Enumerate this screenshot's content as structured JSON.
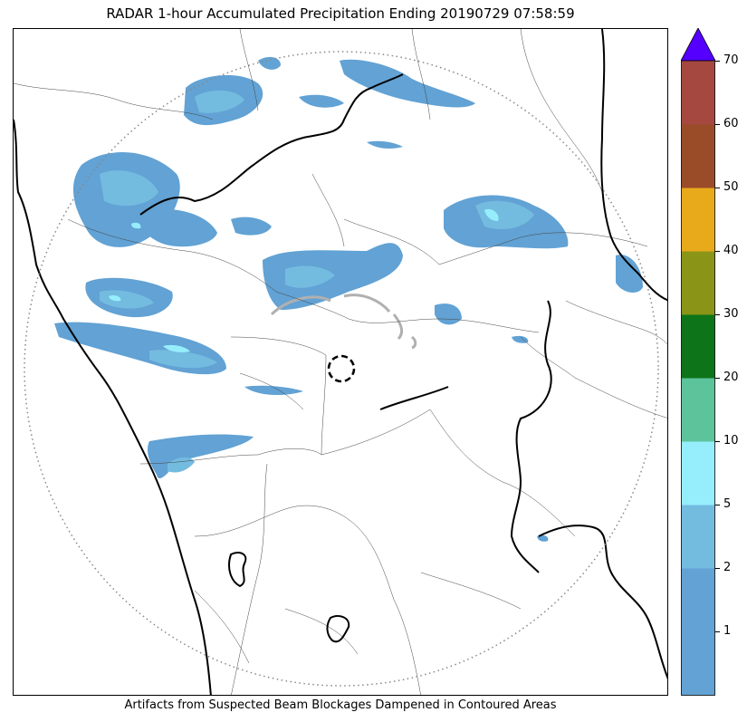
{
  "title": "RADAR 1-hour Accumulated Precipitation Ending 20190729 07:58:59",
  "caption": "Artifacts from Suspected Beam Blockages Dampened in Contoured Areas",
  "colorbar": {
    "extend": "max",
    "extend_color": "#5500ff",
    "levels": [
      {
        "label": "1",
        "color": "#62a2d4"
      },
      {
        "label": "2",
        "color": "#74bbe0"
      },
      {
        "label": "5",
        "color": "#96eefc"
      },
      {
        "label": "10",
        "color": "#5cc39b"
      },
      {
        "label": "20",
        "color": "#0e7419"
      },
      {
        "label": "30",
        "color": "#8a9518"
      },
      {
        "label": "40",
        "color": "#e8aa1b"
      },
      {
        "label": "50",
        "color": "#9a4b28"
      },
      {
        "label": "60",
        "color": "#a44840"
      },
      {
        "label": "70",
        "color": "#d70043"
      }
    ],
    "bottom_segment_color": "#62a2d4",
    "tick_labels": [
      "1",
      "2",
      "5",
      "10",
      "20",
      "30",
      "40",
      "50",
      "60",
      "70"
    ]
  },
  "map": {
    "range_ring": "dotted",
    "radar_site_marker": "dashed-circle",
    "precip_colors": {
      "light": "#62a2d4",
      "moderate": "#74bbe0",
      "heavy": "#96eefc"
    }
  }
}
